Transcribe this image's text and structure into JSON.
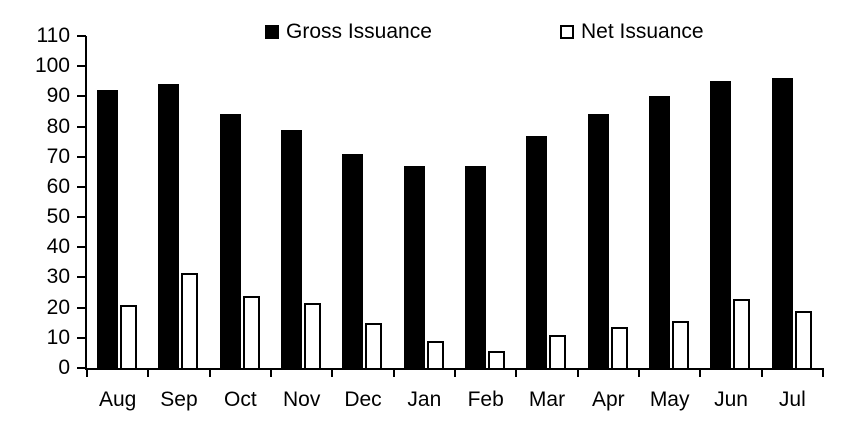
{
  "chart_data": {
    "type": "bar",
    "title": "",
    "xlabel": "",
    "ylabel": "",
    "categories": [
      "Aug",
      "Sep",
      "Oct",
      "Nov",
      "Dec",
      "Jan",
      "Feb",
      "Mar",
      "Apr",
      "May",
      "Jun",
      "Jul"
    ],
    "series": [
      {
        "name": "Gross Issuance",
        "fill": "#000000",
        "stroke": "#000000",
        "values": [
          92,
          94,
          84,
          79,
          71,
          67,
          67,
          77,
          84,
          90,
          95,
          96
        ]
      },
      {
        "name": "Net Issuance",
        "fill": "#ffffff",
        "stroke": "#000000",
        "values": [
          21,
          31.5,
          24,
          21.5,
          15,
          9,
          5.5,
          11,
          13.5,
          15.5,
          23,
          19
        ]
      }
    ],
    "ylim": [
      0,
      110
    ],
    "yticks": [
      0,
      10,
      20,
      30,
      40,
      50,
      60,
      70,
      80,
      90,
      100,
      110
    ],
    "grid": false,
    "legend_position": "top"
  },
  "legend": {
    "gross_label": "Gross Issuance",
    "net_label": "Net Issuance"
  },
  "colors": {
    "bar_gross_fill": "#000000",
    "bar_net_fill": "#ffffff",
    "bar_net_stroke": "#000000",
    "axis": "#000000",
    "text": "#000000",
    "background": "#ffffff"
  }
}
